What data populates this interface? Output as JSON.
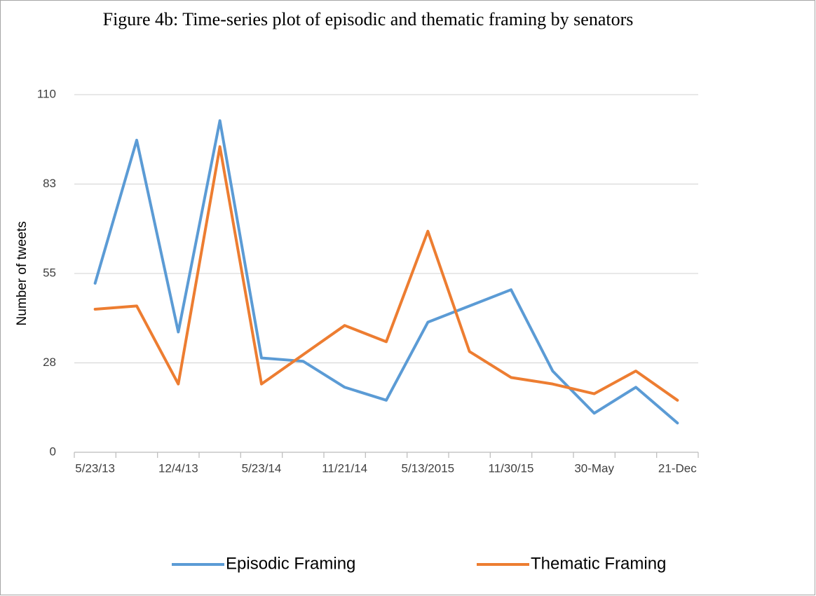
{
  "chart_data": {
    "type": "line",
    "title": "Figure 4b: Time-series plot of episodic and thematic framing by senators",
    "y_label": "Number of tweets",
    "categories": [
      "5/23/13",
      null,
      "12/4/13",
      null,
      "5/23/14",
      null,
      "11/21/14",
      null,
      "5/13/2015",
      null,
      "11/30/15",
      null,
      "30-May",
      null,
      "21-Dec"
    ],
    "series": [
      {
        "name": "Episodic Framing",
        "color": "#5b9bd5",
        "values": [
          52,
          96,
          37,
          102,
          29,
          28,
          20,
          16,
          40,
          45,
          50,
          25,
          12,
          20,
          9
        ]
      },
      {
        "name": "Thematic Framing",
        "color": "#ed7d31",
        "values": [
          44,
          45,
          21,
          94,
          21,
          30,
          39,
          34,
          68,
          31,
          23,
          21,
          18,
          25,
          16
        ]
      }
    ],
    "ylim": [
      0,
      110
    ],
    "yticks": [
      0,
      {
        "value": 27.5,
        "label": "28"
      },
      55,
      {
        "value": 82.5,
        "label": "83"
      },
      110
    ],
    "grid": true,
    "legend": "bottom"
  }
}
